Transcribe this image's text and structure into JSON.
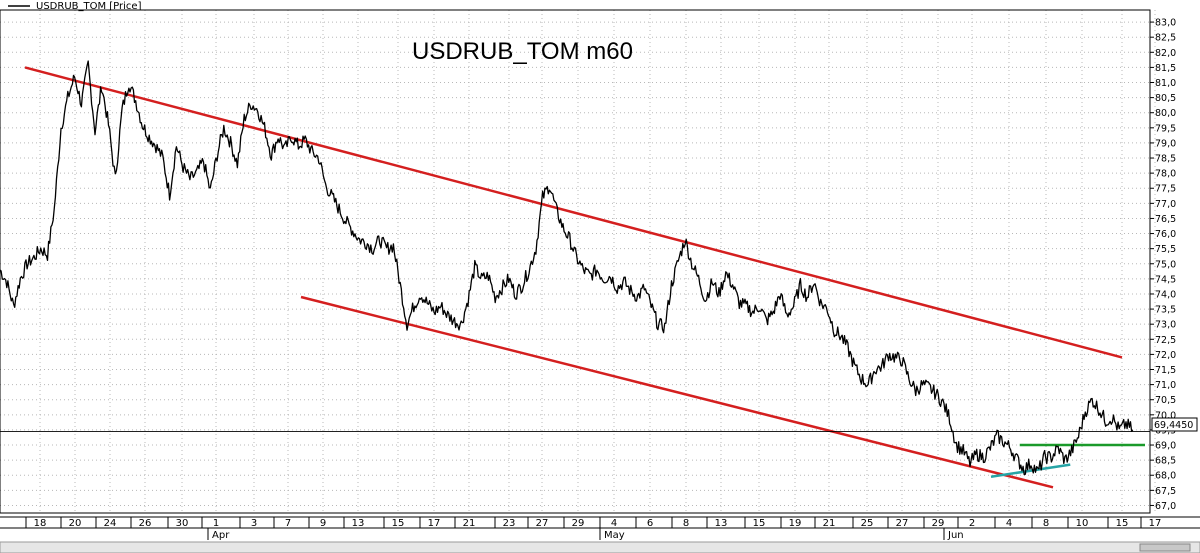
{
  "chart_data": {
    "type": "line",
    "legend": "USDRUB_TOM [Price]",
    "title": "USDRUB_TOM m60",
    "last_price_label": "69,4450",
    "last_price": 69.445,
    "ylim": [
      66.75,
      83.4
    ],
    "ytick_labels": [
      "83,0",
      "82,5",
      "82,0",
      "81,5",
      "81,0",
      "80,5",
      "80,0",
      "79,5",
      "79,0",
      "78,5",
      "78,0",
      "77,5",
      "77,0",
      "76,5",
      "76,0",
      "75,5",
      "75,0",
      "74,5",
      "74,0",
      "73,5",
      "73,0",
      "72,5",
      "72,0",
      "71,5",
      "71,0",
      "70,5",
      "70,0",
      "69,5",
      "69,0",
      "68,5",
      "68,0",
      "67,5",
      "67,0"
    ],
    "ytick_values": [
      83.0,
      82.5,
      82.0,
      81.5,
      81.0,
      80.5,
      80.0,
      79.5,
      79.0,
      78.5,
      78.0,
      77.5,
      77.0,
      76.5,
      76.0,
      75.5,
      75.0,
      74.5,
      74.0,
      73.5,
      73.0,
      72.5,
      72.0,
      71.5,
      71.0,
      70.5,
      70.0,
      69.5,
      69.0,
      68.5,
      68.0,
      67.5,
      67.0
    ],
    "x_day_labels": [
      "18",
      "20",
      "24",
      "26",
      "30",
      "1",
      "3",
      "7",
      "9",
      "13",
      "15",
      "17",
      "21",
      "23",
      "27",
      "29",
      "4",
      "6",
      "8",
      "13",
      "15",
      "19",
      "21",
      "25",
      "27",
      "29",
      "2",
      "4",
      "8",
      "10",
      "15",
      "17"
    ],
    "x_month_labels": [
      "Apr",
      "May",
      "Jun"
    ],
    "grid": true,
    "series": [
      {
        "values": [
          74.8,
          74.4,
          73.6,
          74.5,
          75.0,
          75.2,
          75.5,
          75.3,
          76.8,
          79.5,
          80.5,
          81.2,
          80.3,
          81.6,
          79.4,
          80.9,
          79.6,
          77.8,
          80.1,
          81.0,
          80.4,
          79.6,
          79.2,
          78.9,
          78.5,
          77.3,
          78.9,
          78.2,
          77.8,
          78.0,
          78.4,
          77.4,
          78.6,
          79.5,
          79.0,
          78.3,
          79.8,
          80.3,
          80.1,
          79.5,
          78.6,
          79.2,
          78.8,
          79.2,
          78.9,
          79.1,
          78.7,
          78.5,
          77.6,
          77.2,
          76.8,
          76.4,
          76.1,
          75.8,
          75.7,
          75.5,
          75.8,
          75.5,
          75.6,
          74.3,
          73.0,
          73.6,
          74.0,
          73.7,
          73.4,
          73.6,
          73.3,
          73.1,
          73.0,
          73.8,
          74.9,
          74.5,
          74.6,
          73.9,
          74.2,
          74.5,
          74.0,
          74.3,
          74.8,
          75.5,
          77.2,
          77.6,
          76.8,
          76.2,
          75.8,
          75.2,
          74.8,
          74.6,
          74.8,
          74.5,
          74.6,
          74.2,
          74.4,
          74.1,
          73.9,
          74.2,
          73.6,
          73.0,
          72.9,
          74.3,
          75.1,
          75.8,
          75.0,
          74.5,
          73.8,
          74.4,
          74.0,
          74.7,
          74.3,
          73.7,
          73.6,
          73.4,
          73.6,
          73.1,
          73.4,
          74.0,
          73.3,
          73.6,
          74.3,
          73.9,
          74.4,
          73.7,
          73.5,
          72.8,
          72.6,
          72.2,
          71.6,
          71.2,
          71.0,
          71.5,
          71.6,
          72.0,
          71.9,
          71.8,
          71.2,
          70.8,
          71.0,
          70.9,
          70.7,
          70.4,
          69.9,
          69.0,
          68.8,
          68.4,
          68.7,
          68.6,
          68.9,
          69.3,
          69.1,
          68.9,
          68.5,
          68.2,
          68.4,
          68.1,
          68.6,
          68.6,
          68.9,
          68.5,
          68.8,
          69.3,
          70.1,
          70.5,
          70.2,
          69.8,
          69.9,
          69.5,
          69.7,
          69.5
        ]
      }
    ],
    "trendlines": [
      {
        "color": "#d41f1f",
        "x": [
          0.0,
          0.98
        ],
        "y": [
          81.5,
          71.9
        ]
      },
      {
        "color": "#d41f1f",
        "x": [
          0.24,
          0.92
        ],
        "y": [
          73.9,
          67.6
        ]
      },
      {
        "color": "#1a9a2a",
        "x": [
          0.865,
          1.0
        ],
        "y": [
          69.0,
          69.0
        ]
      },
      {
        "color": "#26a4a6",
        "x": [
          0.84,
          0.935
        ],
        "y": [
          67.95,
          68.35
        ]
      }
    ]
  }
}
